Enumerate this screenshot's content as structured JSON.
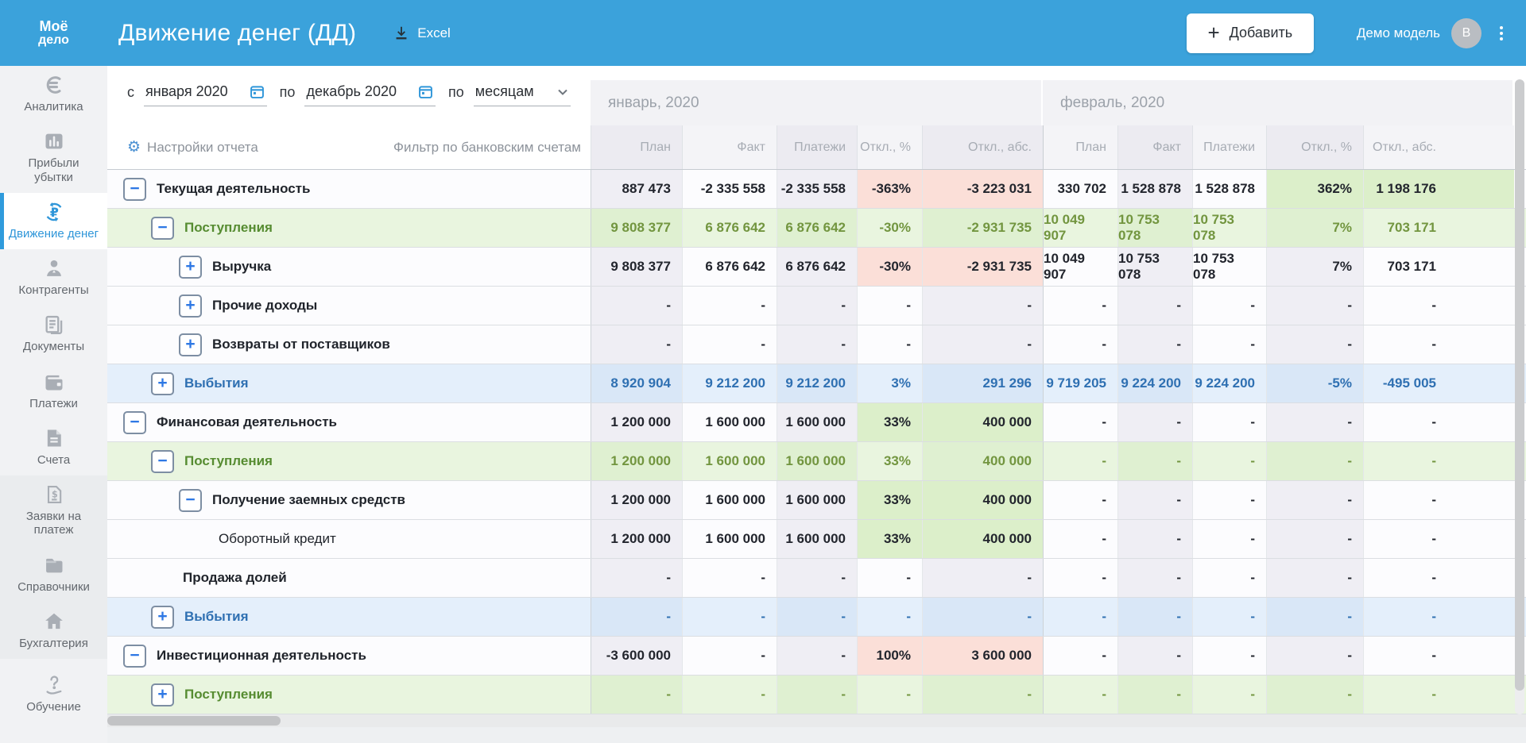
{
  "topbar": {
    "logo_line1": "Моё",
    "logo_line2": "дело",
    "title": "Движение денег (ДД)",
    "excel_label": "Excel",
    "add_label": "Добавить",
    "user_label": "Демо модель",
    "avatar_initial": "В"
  },
  "sidebar": {
    "items": [
      {
        "label": "Аналитика",
        "icon": "analytics-icon",
        "active": false,
        "section": "main"
      },
      {
        "label": "Прибыли убытки",
        "icon": "profit-loss-icon",
        "active": false,
        "section": "main"
      },
      {
        "label": "Движение денег",
        "icon": "cash-flow-icon",
        "active": true,
        "section": "main"
      },
      {
        "label": "Контрагенты",
        "icon": "contractors-icon",
        "active": false,
        "section": "main"
      },
      {
        "label": "Документы",
        "icon": "documents-icon",
        "active": false,
        "section": "main"
      },
      {
        "label": "Платежи",
        "icon": "payments-icon",
        "active": false,
        "section": "main"
      },
      {
        "label": "Счета",
        "icon": "invoices-icon",
        "active": false,
        "section": "main"
      },
      {
        "label": "Заявки на платеж",
        "icon": "payment-request-icon",
        "active": false,
        "section": "secondary"
      },
      {
        "label": "Справочники",
        "icon": "directories-icon",
        "active": false,
        "section": "secondary"
      },
      {
        "label": "Бухгалтерия",
        "icon": "accounting-icon",
        "active": false,
        "section": "secondary"
      },
      {
        "label": "Обучение",
        "icon": "training-icon",
        "active": false,
        "section": "footer"
      }
    ]
  },
  "filters": {
    "from_label": "с",
    "from_value": "января 2020",
    "to_label": "по",
    "to_value": "декабрь 2020",
    "group_label": "по",
    "group_value": "месяцам",
    "settings_label": "Настройки отчета",
    "bank_filter_label": "Фильтр по банковским счетам"
  },
  "colors": {
    "brand_blue": "#3BA2DB",
    "positive_bg": "#DCEFCA",
    "negative_bg": "#FBDFD8",
    "income_row_bg": "#E9F5DF",
    "outcome_row_bg": "#E4EFFB"
  },
  "table": {
    "months": [
      {
        "label": "январь, 2020",
        "columns": [
          "План",
          "Факт",
          "Платежи",
          "Откл., %",
          "Откл., абс."
        ]
      },
      {
        "label": "февраль, 2020",
        "columns": [
          "План",
          "Факт",
          "Платежи",
          "Откл., %",
          "Откл., абс."
        ]
      }
    ],
    "rows": [
      {
        "label": "Текущая деятельность",
        "level": "1",
        "icon": "minus",
        "variant": "default",
        "label_weight": "bold",
        "values": [
          "887 473",
          "-2 335 558",
          "-2 335 558",
          "-363%",
          "-3 223 031",
          "330 702",
          "1 528 878",
          "1 528 878",
          "362%",
          "1 198 176"
        ],
        "highlights": {
          "3": "neg",
          "4": "neg",
          "8": "pos",
          "9": "pos"
        }
      },
      {
        "label": "Поступления",
        "level": "2",
        "icon": "minus",
        "variant": "income",
        "label_weight": "bold",
        "values": [
          "9 808 377",
          "6 876 642",
          "6 876 642",
          "-30%",
          "-2 931 735",
          "10 049 907",
          "10 753 078",
          "10 753 078",
          "7%",
          "703 171"
        ],
        "highlights": {}
      },
      {
        "label": "Выручка",
        "level": "3",
        "icon": "plus",
        "variant": "default",
        "label_weight": "bold",
        "values": [
          "9 808 377",
          "6 876 642",
          "6 876 642",
          "-30%",
          "-2 931 735",
          "10 049 907",
          "10 753 078",
          "10 753 078",
          "7%",
          "703 171"
        ],
        "highlights": {
          "3": "neg",
          "4": "neg"
        }
      },
      {
        "label": "Прочие доходы",
        "level": "3",
        "icon": "plus",
        "variant": "default",
        "label_weight": "bold",
        "values": [
          "-",
          "-",
          "-",
          "-",
          "-",
          "-",
          "-",
          "-",
          "-",
          "-"
        ],
        "highlights": {}
      },
      {
        "label": "Возвраты от поставщиков",
        "level": "3",
        "icon": "plus",
        "variant": "default",
        "label_weight": "bold",
        "values": [
          "-",
          "-",
          "-",
          "-",
          "-",
          "-",
          "-",
          "-",
          "-",
          "-"
        ],
        "highlights": {}
      },
      {
        "label": "Выбытия",
        "level": "2",
        "icon": "plus",
        "variant": "outcome",
        "label_weight": "bold",
        "values": [
          "8 920 904",
          "9 212 200",
          "9 212 200",
          "3%",
          "291 296",
          "9 719 205",
          "9 224 200",
          "9 224 200",
          "-5%",
          "-495 005"
        ],
        "highlights": {}
      },
      {
        "label": "Финансовая деятельность",
        "level": "1",
        "icon": "minus",
        "variant": "default",
        "label_weight": "bold",
        "values": [
          "1 200 000",
          "1 600 000",
          "1 600 000",
          "33%",
          "400 000",
          "-",
          "-",
          "-",
          "-",
          "-"
        ],
        "highlights": {
          "3": "pos",
          "4": "pos"
        }
      },
      {
        "label": "Поступления",
        "level": "2",
        "icon": "minus",
        "variant": "income",
        "label_weight": "bold",
        "values": [
          "1 200 000",
          "1 600 000",
          "1 600 000",
          "33%",
          "400 000",
          "-",
          "-",
          "-",
          "-",
          "-"
        ],
        "highlights": {}
      },
      {
        "label": "Получение заемных средств",
        "level": "3",
        "icon": "minus",
        "variant": "default",
        "label_weight": "bold",
        "values": [
          "1 200 000",
          "1 600 000",
          "1 600 000",
          "33%",
          "400 000",
          "-",
          "-",
          "-",
          "-",
          "-"
        ],
        "highlights": {
          "3": "pos",
          "4": "pos"
        }
      },
      {
        "label": "Оборотный кредит",
        "level": "4",
        "icon": null,
        "variant": "default",
        "label_weight": "normal",
        "values": [
          "1 200 000",
          "1 600 000",
          "1 600 000",
          "33%",
          "400 000",
          "-",
          "-",
          "-",
          "-",
          "-"
        ],
        "highlights": {
          "3": "pos",
          "4": "pos"
        }
      },
      {
        "label": "Продажа долей",
        "level": "3t",
        "icon": null,
        "variant": "default",
        "label_weight": "bold",
        "values": [
          "-",
          "-",
          "-",
          "-",
          "-",
          "-",
          "-",
          "-",
          "-",
          "-"
        ],
        "highlights": {}
      },
      {
        "label": "Выбытия",
        "level": "2",
        "icon": "plus",
        "variant": "outcome",
        "label_weight": "bold",
        "values": [
          "-",
          "-",
          "-",
          "-",
          "-",
          "-",
          "-",
          "-",
          "-",
          "-"
        ],
        "highlights": {}
      },
      {
        "label": "Инвестиционная деятельность",
        "level": "1",
        "icon": "minus",
        "variant": "default",
        "label_weight": "bold",
        "values": [
          "-3 600 000",
          "-",
          "-",
          "100%",
          "3 600 000",
          "-",
          "-",
          "-",
          "-",
          "-"
        ],
        "highlights": {
          "3": "neg",
          "4": "neg"
        }
      },
      {
        "label": "Поступления",
        "level": "2",
        "icon": "plus",
        "variant": "income",
        "label_weight": "bold",
        "values": [
          "-",
          "-",
          "-",
          "-",
          "-",
          "-",
          "-",
          "-",
          "-",
          "-"
        ],
        "highlights": {}
      }
    ]
  }
}
